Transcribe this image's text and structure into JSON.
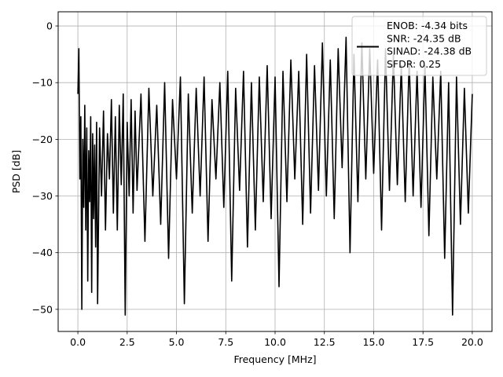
{
  "chart_data": {
    "type": "line",
    "xlabel": "Frequency [MHz]",
    "ylabel": "PSD [dB]",
    "xlim": [
      -1.0,
      21.0
    ],
    "ylim": [
      -53.9,
      2.5
    ],
    "xticks": [
      0.0,
      2.5,
      5.0,
      7.5,
      10.0,
      12.5,
      15.0,
      17.5,
      20.0
    ],
    "xtick_labels": [
      "0.0",
      "2.5",
      "5.0",
      "7.5",
      "10.0",
      "12.5",
      "15.0",
      "17.5",
      "20.0"
    ],
    "yticks": [
      0,
      -10,
      -20,
      -30,
      -40,
      -50
    ],
    "ytick_labels": [
      "0",
      "−10",
      "−20",
      "−30",
      "−40",
      "−50"
    ],
    "grid": true,
    "legend_placement": "upper right",
    "legend_lines": [
      "ENOB: -4.34 bits",
      "SNR: -24.35 dB",
      "SINAD: -24.38 dB",
      "SFDR: 0.25"
    ],
    "series": [
      {
        "color": "#000000",
        "x": [
          0.0,
          0.05,
          0.1,
          0.15,
          0.2,
          0.25,
          0.3,
          0.35,
          0.4,
          0.45,
          0.5,
          0.55,
          0.6,
          0.65,
          0.7,
          0.75,
          0.8,
          0.85,
          0.9,
          0.95,
          1.0,
          1.1,
          1.2,
          1.3,
          1.4,
          1.5,
          1.6,
          1.7,
          1.8,
          1.9,
          2.0,
          2.1,
          2.2,
          2.3,
          2.4,
          2.5,
          2.6,
          2.7,
          2.8,
          2.9,
          3.0,
          3.2,
          3.4,
          3.6,
          3.8,
          4.0,
          4.2,
          4.4,
          4.6,
          4.8,
          5.0,
          5.2,
          5.4,
          5.6,
          5.8,
          6.0,
          6.2,
          6.4,
          6.6,
          6.8,
          7.0,
          7.2,
          7.4,
          7.6,
          7.8,
          8.0,
          8.2,
          8.4,
          8.6,
          8.8,
          9.0,
          9.2,
          9.4,
          9.6,
          9.8,
          10.0,
          10.2,
          10.4,
          10.6,
          10.8,
          11.0,
          11.2,
          11.4,
          11.6,
          11.8,
          12.0,
          12.2,
          12.4,
          12.6,
          12.8,
          13.0,
          13.2,
          13.4,
          13.6,
          13.8,
          14.0,
          14.2,
          14.4,
          14.6,
          14.8,
          15.0,
          15.2,
          15.4,
          15.6,
          15.8,
          16.0,
          16.2,
          16.4,
          16.6,
          16.8,
          17.0,
          17.2,
          17.4,
          17.6,
          17.8,
          18.0,
          18.2,
          18.4,
          18.6,
          18.8,
          19.0,
          19.2,
          19.4,
          19.6,
          19.8,
          20.0
        ],
        "y": [
          -12,
          -4,
          -27,
          -16,
          -50,
          -20,
          -32,
          -14,
          -36,
          -18,
          -45,
          -22,
          -31,
          -16,
          -47,
          -19,
          -34,
          -21,
          -39,
          -17,
          -49,
          -18,
          -30,
          -15,
          -36,
          -19,
          -27,
          -13,
          -33,
          -16,
          -36,
          -14,
          -28,
          -12,
          -51,
          -17,
          -30,
          -13,
          -33,
          -15,
          -29,
          -12,
          -38,
          -11,
          -30,
          -14,
          -35,
          -10,
          -41,
          -13,
          -27,
          -9,
          -49,
          -12,
          -33,
          -11,
          -30,
          -9,
          -38,
          -13,
          -27,
          -10,
          -32,
          -8,
          -45,
          -11,
          -29,
          -8,
          -39,
          -10,
          -36,
          -9,
          -31,
          -7,
          -34,
          -9,
          -46,
          -8,
          -31,
          -6,
          -27,
          -8,
          -35,
          -5,
          -33,
          -7,
          -29,
          -3,
          -30,
          -6,
          -34,
          -4,
          -25,
          -2,
          -40,
          -5,
          -31,
          -3,
          -27,
          -4,
          -26,
          -6,
          -36,
          -4,
          -29,
          -5,
          -28,
          -7,
          -31,
          -6,
          -30,
          -8,
          -32,
          -7,
          -37,
          -9,
          -27,
          -8,
          -41,
          -10,
          -51,
          -9,
          -35,
          -11,
          -33,
          -12
        ]
      }
    ]
  }
}
